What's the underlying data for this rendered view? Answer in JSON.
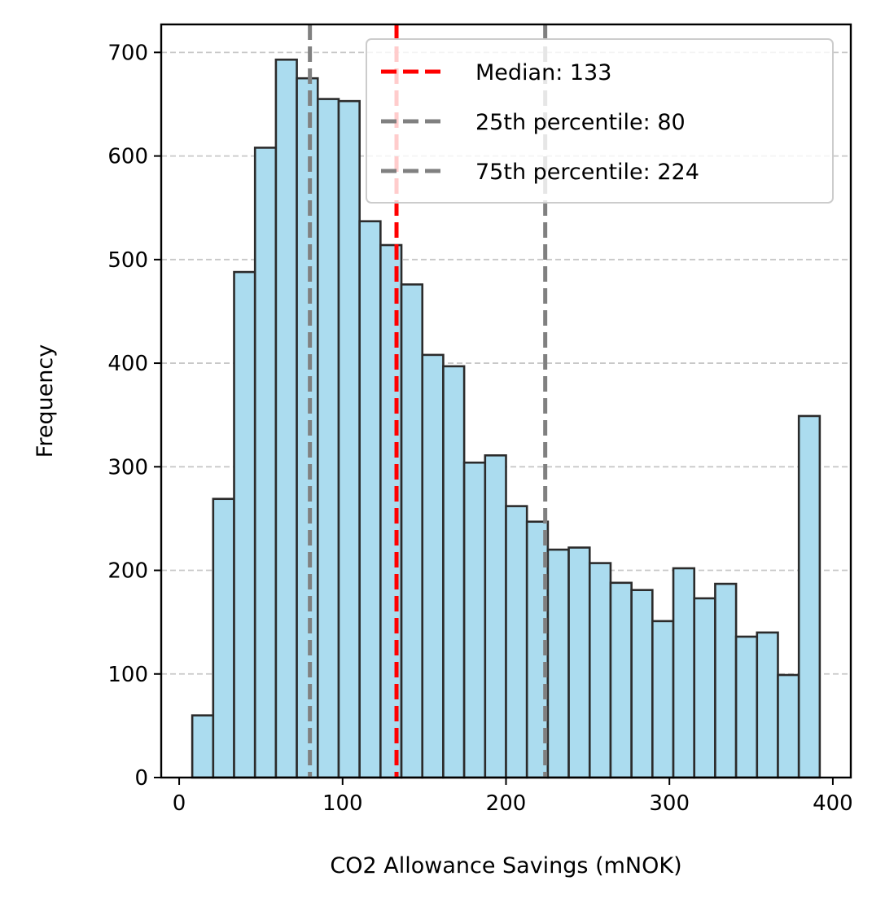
{
  "chart_data": {
    "type": "bar",
    "title": "",
    "xlabel": "CO2 Allowance Savings (mNOK)",
    "ylabel": "Frequency",
    "xlim": [
      -11,
      411
    ],
    "ylim": [
      0,
      727
    ],
    "xticks": [
      0,
      100,
      200,
      300,
      400
    ],
    "yticks": [
      0,
      100,
      200,
      300,
      400,
      500,
      600,
      700
    ],
    "grid": "y-dashed",
    "legend_position": "top-right",
    "bin_edges": [
      8,
      20.8,
      33.6,
      46.4,
      59.2,
      72,
      84.8,
      97.6,
      110.4,
      123.2,
      136,
      148.8,
      161.6,
      174.4,
      187.2,
      200,
      212.8,
      225.6,
      238.4,
      251.2,
      264,
      276.8,
      289.6,
      302.4,
      315.2,
      328,
      340.8,
      353.6,
      366.4,
      379.2,
      392
    ],
    "values": [
      60,
      269,
      488,
      608,
      693,
      675,
      655,
      653,
      537,
      514,
      476,
      408,
      397,
      304,
      311,
      262,
      247,
      220,
      222,
      207,
      188,
      181,
      151,
      202,
      173,
      187,
      136,
      140,
      99,
      349
    ],
    "bar_color": "#ABDCEF",
    "bar_edge_color": "#2B2B2B",
    "reference_lines": [
      {
        "label": "Median: 133",
        "x": 133,
        "color": "#FF0000"
      },
      {
        "label": "25th percentile: 80",
        "x": 80,
        "color": "#808080"
      },
      {
        "label": "75th percentile: 224",
        "x": 224,
        "color": "#808080"
      }
    ]
  }
}
